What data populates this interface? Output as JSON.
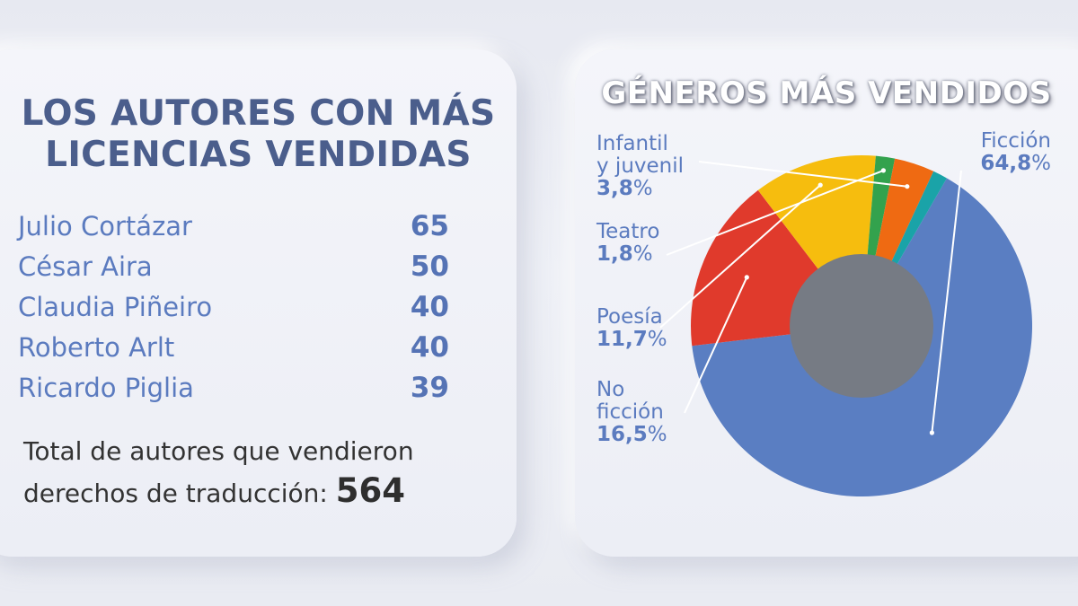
{
  "authors_panel": {
    "title_line1": "LOS AUTORES CON MÁS",
    "title_line2": "LICENCIAS VENDIDAS",
    "authors": [
      {
        "name": "Julio Cortázar",
        "count": "65"
      },
      {
        "name": "César Aira",
        "count": "50"
      },
      {
        "name": "Claudia Piñeiro",
        "count": "40"
      },
      {
        "name": "Roberto Arlt",
        "count": "40"
      },
      {
        "name": "Ricardo Piglia",
        "count": "39"
      }
    ],
    "total_line1": "Total de autores que vendieron",
    "total_line2": "derechos de traducción:",
    "total_value": "564"
  },
  "chart_data": {
    "type": "pie",
    "title": "GÉNEROS MÁS VENDIDOS",
    "unit": "%",
    "series": [
      {
        "name": "Ficción",
        "value": 64.8,
        "label": "64,8",
        "color": "#5a7ec2"
      },
      {
        "name": "No ficción",
        "name_line1": "No",
        "name_line2": "ficción",
        "value": 16.5,
        "label": "16,5",
        "color": "#e03a2c"
      },
      {
        "name": "Poesía",
        "value": 11.7,
        "label": "11,7",
        "color": "#f6bd0e"
      },
      {
        "name": "Teatro",
        "value": 1.8,
        "label": "1,8",
        "color": "#33a24d"
      },
      {
        "name": "Infantil y juvenil",
        "name_line1": "Infantil",
        "name_line2": "y juvenil",
        "value": 3.8,
        "label": "3,8",
        "color": "#ef6a12"
      },
      {
        "name": "",
        "value": 1.4,
        "label": "",
        "color": "#1aa3a8"
      }
    ],
    "hole_color": "#767b84",
    "leader_line_color": "#ffffff"
  }
}
